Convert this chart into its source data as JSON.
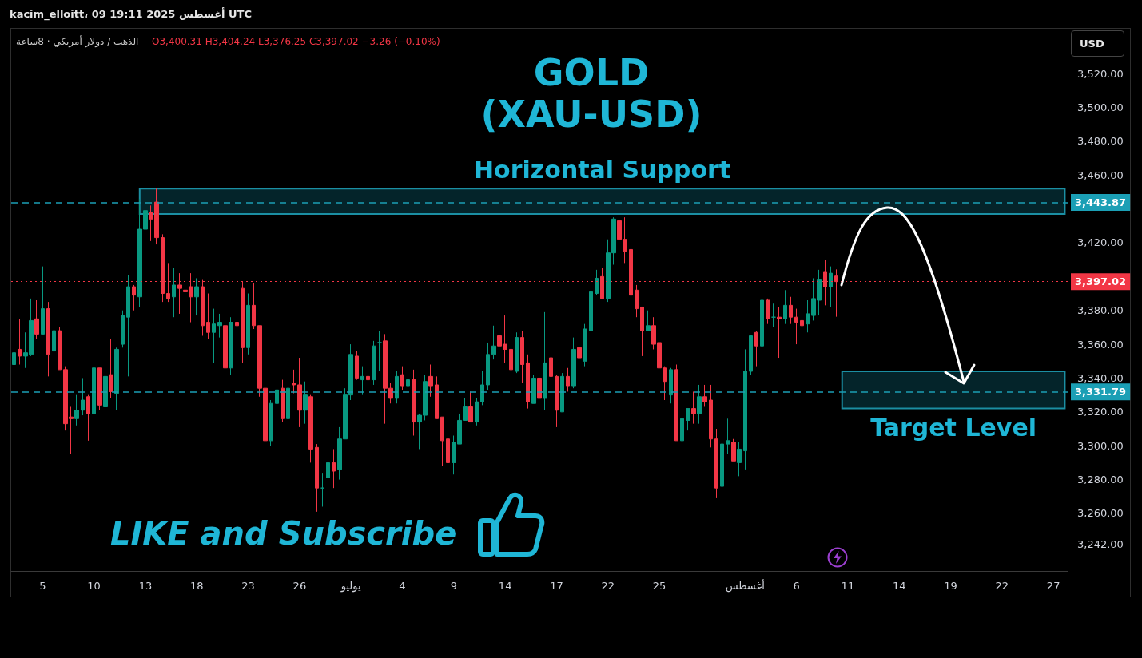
{
  "chart_data": {
    "type": "candlestick",
    "title": "GOLD\n(XAU-USD)",
    "annotations": [
      "kacim_elloitt، 09 أغسطس 2025 19:11 UTC",
      "الذهب / دولار أمريكي · 8ساعة",
      "O3,400.31 H3,404.24 L3,376.25 C3,397.02 −3.26 (−0.10%)",
      "LIKE and Subscribe",
      "USD"
    ],
    "categories": [
      null,
      null,
      null,
      null,
      null,
      "5",
      null,
      null,
      null,
      null,
      null,
      null,
      null,
      null,
      "10",
      null,
      null,
      null,
      null,
      null,
      null,
      null,
      null,
      "13",
      null,
      null,
      null,
      null,
      null,
      null,
      null,
      null,
      "18",
      null,
      null,
      null,
      null,
      null,
      null,
      null,
      null,
      "23",
      null,
      null,
      null,
      null,
      null,
      null,
      null,
      null,
      "26",
      null,
      null,
      null,
      null,
      null,
      null,
      null,
      null,
      "يوليو",
      null,
      null,
      null,
      null,
      null,
      null,
      null,
      null,
      "4",
      null,
      null,
      null,
      null,
      null,
      null,
      null,
      null,
      "9",
      null,
      null,
      null,
      null,
      null,
      null,
      null,
      null,
      "14",
      null,
      null,
      null,
      null,
      null,
      null,
      null,
      null,
      "17",
      null,
      null,
      null,
      null,
      null,
      null,
      null,
      null,
      "22",
      null,
      null,
      null,
      null,
      null,
      null,
      null,
      null,
      "25",
      null,
      null,
      null,
      null,
      null,
      null,
      null,
      null,
      null,
      null,
      null,
      null,
      null,
      null,
      "أغسطس",
      null,
      null,
      null,
      null,
      null,
      null,
      null,
      null,
      "6",
      null,
      null,
      null,
      null,
      null,
      null,
      null,
      null,
      "11",
      null,
      null,
      null,
      null,
      null,
      null,
      null,
      null,
      "14",
      null,
      null,
      null,
      null,
      null,
      null,
      null,
      null,
      "19",
      null,
      null,
      null,
      null,
      null,
      null,
      null,
      null,
      "22",
      null,
      null,
      null,
      null,
      null,
      null,
      null,
      null,
      "27",
      null,
      null
    ],
    "ohlc": [
      [
        3348,
        3357,
        3335,
        3355
      ],
      [
        3357,
        3375,
        3348,
        3353
      ],
      [
        3353,
        3367,
        3346,
        3355
      ],
      [
        3354,
        3387,
        3353,
        3374
      ],
      [
        3375,
        3386,
        3363,
        3366
      ],
      [
        3366,
        3406,
        3366,
        3381
      ],
      [
        3381,
        3385,
        3341,
        3354
      ],
      [
        3356,
        3378,
        3355,
        3368
      ],
      [
        3368,
        3370,
        3345,
        3345
      ],
      [
        3345,
        3347,
        3309,
        3313
      ],
      [
        3317,
        3323,
        3295,
        3316
      ],
      [
        3316,
        3330,
        3312,
        3321
      ],
      [
        3321,
        3340,
        3318,
        3327
      ],
      [
        3329,
        3330,
        3303,
        3319
      ],
      [
        3319,
        3351,
        3317,
        3346
      ],
      [
        3346,
        3346,
        3321,
        3324
      ],
      [
        3323,
        3345,
        3317,
        3341
      ],
      [
        3342,
        3363,
        3328,
        3332
      ],
      [
        3331,
        3358,
        3321,
        3357
      ],
      [
        3360,
        3380,
        3358,
        3377
      ],
      [
        3376,
        3401,
        3341,
        3394
      ],
      [
        3394,
        3395,
        3380,
        3389
      ],
      [
        3388,
        3446,
        3382,
        3428
      ],
      [
        3428,
        3448,
        3410,
        3439
      ],
      [
        3438,
        3442,
        3421,
        3434
      ],
      [
        3444,
        3452,
        3419,
        3423
      ],
      [
        3423,
        3425,
        3385,
        3390
      ],
      [
        3390,
        3408,
        3385,
        3387
      ],
      [
        3388,
        3405,
        3376,
        3395
      ],
      [
        3395,
        3402,
        3378,
        3393
      ],
      [
        3392,
        3395,
        3368,
        3391
      ],
      [
        3394,
        3402,
        3373,
        3388
      ],
      [
        3388,
        3399,
        3377,
        3394
      ],
      [
        3394,
        3398,
        3365,
        3371
      ],
      [
        3373,
        3390,
        3363,
        3367
      ],
      [
        3367,
        3381,
        3349,
        3372
      ],
      [
        3371,
        3378,
        3364,
        3373
      ],
      [
        3371,
        3373,
        3345,
        3346
      ],
      [
        3346,
        3376,
        3342,
        3373
      ],
      [
        3373,
        3377,
        3367,
        3371
      ],
      [
        3393,
        3397,
        3349,
        3358
      ],
      [
        3358,
        3390,
        3354,
        3383
      ],
      [
        3383,
        3396,
        3369,
        3371
      ],
      [
        3371,
        3371,
        3329,
        3334
      ],
      [
        3334,
        3335,
        3297,
        3303
      ],
      [
        3303,
        3327,
        3300,
        3325
      ],
      [
        3325,
        3337,
        3323,
        3333
      ],
      [
        3334,
        3339,
        3314,
        3316
      ],
      [
        3316,
        3338,
        3314,
        3334
      ],
      [
        3337,
        3345,
        3331,
        3336
      ],
      [
        3336,
        3352,
        3311,
        3321
      ],
      [
        3321,
        3338,
        3313,
        3330
      ],
      [
        3329,
        3330,
        3290,
        3298
      ],
      [
        3299,
        3301,
        3261,
        3275
      ],
      [
        3275,
        3284,
        3264,
        3275
      ],
      [
        3281,
        3293,
        3261,
        3290
      ],
      [
        3290,
        3298,
        3275,
        3285
      ],
      [
        3286,
        3311,
        3280,
        3304
      ],
      [
        3304,
        3334,
        3304,
        3330
      ],
      [
        3330,
        3360,
        3327,
        3354
      ],
      [
        3353,
        3356,
        3339,
        3340
      ],
      [
        3339,
        3347,
        3330,
        3341
      ],
      [
        3341,
        3353,
        3330,
        3339
      ],
      [
        3339,
        3362,
        3336,
        3359
      ],
      [
        3361,
        3368,
        3344,
        3361
      ],
      [
        3362,
        3366,
        3313,
        3334
      ],
      [
        3334,
        3337,
        3325,
        3328
      ],
      [
        3328,
        3344,
        3325,
        3341
      ],
      [
        3342,
        3347,
        3333,
        3335
      ],
      [
        3335,
        3339,
        3333,
        3339
      ],
      [
        3339,
        3345,
        3306,
        3314
      ],
      [
        3314,
        3319,
        3298,
        3318
      ],
      [
        3318,
        3342,
        3315,
        3338
      ],
      [
        3341,
        3348,
        3329,
        3335
      ],
      [
        3336,
        3341,
        3316,
        3316
      ],
      [
        3317,
        3317,
        3288,
        3303
      ],
      [
        3304,
        3309,
        3286,
        3290
      ],
      [
        3290,
        3306,
        3283,
        3302
      ],
      [
        3301,
        3319,
        3301,
        3315
      ],
      [
        3315,
        3328,
        3315,
        3323
      ],
      [
        3323,
        3332,
        3314,
        3314
      ],
      [
        3314,
        3328,
        3312,
        3326
      ],
      [
        3326,
        3344,
        3324,
        3336
      ],
      [
        3336,
        3361,
        3333,
        3354
      ],
      [
        3354,
        3371,
        3351,
        3359
      ],
      [
        3365,
        3376,
        3356,
        3359
      ],
      [
        3360,
        3377,
        3349,
        3357
      ],
      [
        3357,
        3358,
        3343,
        3345
      ],
      [
        3344,
        3367,
        3343,
        3364
      ],
      [
        3364,
        3368,
        3337,
        3348
      ],
      [
        3349,
        3354,
        3322,
        3326
      ],
      [
        3325,
        3342,
        3325,
        3340
      ],
      [
        3340,
        3345,
        3324,
        3328
      ],
      [
        3328,
        3379,
        3321,
        3349
      ],
      [
        3352,
        3354,
        3338,
        3341
      ],
      [
        3341,
        3342,
        3311,
        3321
      ],
      [
        3320,
        3343,
        3320,
        3341
      ],
      [
        3341,
        3346,
        3332,
        3335
      ],
      [
        3335,
        3364,
        3334,
        3357
      ],
      [
        3358,
        3361,
        3350,
        3352
      ],
      [
        3350,
        3372,
        3347,
        3369
      ],
      [
        3368,
        3397,
        3365,
        3391
      ],
      [
        3390,
        3404,
        3389,
        3399
      ],
      [
        3400,
        3405,
        3387,
        3387
      ],
      [
        3387,
        3422,
        3385,
        3414
      ],
      [
        3414,
        3435,
        3407,
        3434
      ],
      [
        3433,
        3441,
        3418,
        3422
      ],
      [
        3422,
        3435,
        3408,
        3415
      ],
      [
        3416,
        3422,
        3383,
        3389
      ],
      [
        3392,
        3395,
        3376,
        3381
      ],
      [
        3382,
        3382,
        3353,
        3368
      ],
      [
        3368,
        3380,
        3368,
        3371
      ],
      [
        3371,
        3376,
        3357,
        3360
      ],
      [
        3361,
        3362,
        3339,
        3346
      ],
      [
        3346,
        3347,
        3327,
        3338
      ],
      [
        3330,
        3346,
        3325,
        3345
      ],
      [
        3345,
        3348,
        3303,
        3303
      ],
      [
        3303,
        3321,
        3303,
        3316
      ],
      [
        3315,
        3322,
        3309,
        3322
      ],
      [
        3322,
        3332,
        3313,
        3319
      ],
      [
        3319,
        3336,
        3313,
        3329
      ],
      [
        3329,
        3336,
        3323,
        3326
      ],
      [
        3327,
        3336,
        3299,
        3304
      ],
      [
        3304,
        3310,
        3269,
        3275
      ],
      [
        3276,
        3303,
        3275,
        3301
      ],
      [
        3301,
        3316,
        3295,
        3303
      ],
      [
        3302,
        3304,
        3291,
        3291
      ],
      [
        3290,
        3302,
        3282,
        3298
      ],
      [
        3297,
        3357,
        3286,
        3344
      ],
      [
        3344,
        3365,
        3342,
        3365
      ],
      [
        3367,
        3368,
        3347,
        3359
      ],
      [
        3359,
        3388,
        3354,
        3386
      ],
      [
        3386,
        3387,
        3372,
        3375
      ],
      [
        3376,
        3384,
        3370,
        3376
      ],
      [
        3376,
        3382,
        3352,
        3375
      ],
      [
        3375,
        3392,
        3372,
        3383
      ],
      [
        3383,
        3388,
        3372,
        3376
      ],
      [
        3376,
        3381,
        3360,
        3373
      ],
      [
        3374,
        3382,
        3369,
        3371
      ],
      [
        3372,
        3386,
        3367,
        3378
      ],
      [
        3377,
        3399,
        3374,
        3387
      ],
      [
        3386,
        3404,
        3377,
        3398
      ],
      [
        3403,
        3410,
        3383,
        3394
      ],
      [
        3394,
        3406,
        3382,
        3402
      ],
      [
        3400.31,
        3404.24,
        3376.25,
        3397.02
      ],
      null,
      null,
      null,
      null,
      null,
      null,
      null,
      null,
      null,
      null,
      null,
      null,
      null,
      null,
      null,
      null,
      null,
      null,
      null,
      null,
      null,
      null,
      null,
      null,
      null,
      null,
      null,
      null,
      null,
      null,
      null,
      null,
      null,
      null,
      null,
      null,
      null,
      null,
      null,
      null
    ],
    "ylim": [
      3226,
      3546
    ],
    "yticks": [
      {
        "value": 3242,
        "label": "3,242.00"
      },
      {
        "value": 3260,
        "label": "3,260.00"
      },
      {
        "value": 3280,
        "label": "3,280.00"
      },
      {
        "value": 3300,
        "label": "3,300.00"
      },
      {
        "value": 3320,
        "label": "3,320.00"
      },
      {
        "value": 3340,
        "label": "3,340.00"
      },
      {
        "value": 3360,
        "label": "3,360.00"
      },
      {
        "value": 3380,
        "label": "3,380.00"
      },
      {
        "value": 3420,
        "label": "3,420.00"
      },
      {
        "value": 3460,
        "label": "3,460.00"
      },
      {
        "value": 3480,
        "label": "3,480.00"
      },
      {
        "value": 3500,
        "label": "3,500.00"
      },
      {
        "value": 3520,
        "label": "3,520.00"
      }
    ],
    "bands": [
      {
        "axis": "y",
        "from": 3437,
        "to": 3452,
        "label": "Horizontal Support",
        "color": "#1b8fa3"
      },
      {
        "axis": "y",
        "from": 3322,
        "to": 3344,
        "label": "Target Level",
        "color": "#1b8fa3"
      }
    ],
    "ref_lines": [
      {
        "axis": "y",
        "value": 3443.87,
        "label": "3,443.87",
        "color": "#1b9fb5",
        "line_style": "dashed"
      },
      {
        "axis": "y",
        "value": 3397.02,
        "label": "3,397.02",
        "color": "#f23645",
        "line_style": "dotted"
      },
      {
        "axis": "y",
        "value": 3331.79,
        "label": "3,331.79",
        "color": "#1b9fb5",
        "line_style": "dashed"
      }
    ],
    "grid": false
  }
}
